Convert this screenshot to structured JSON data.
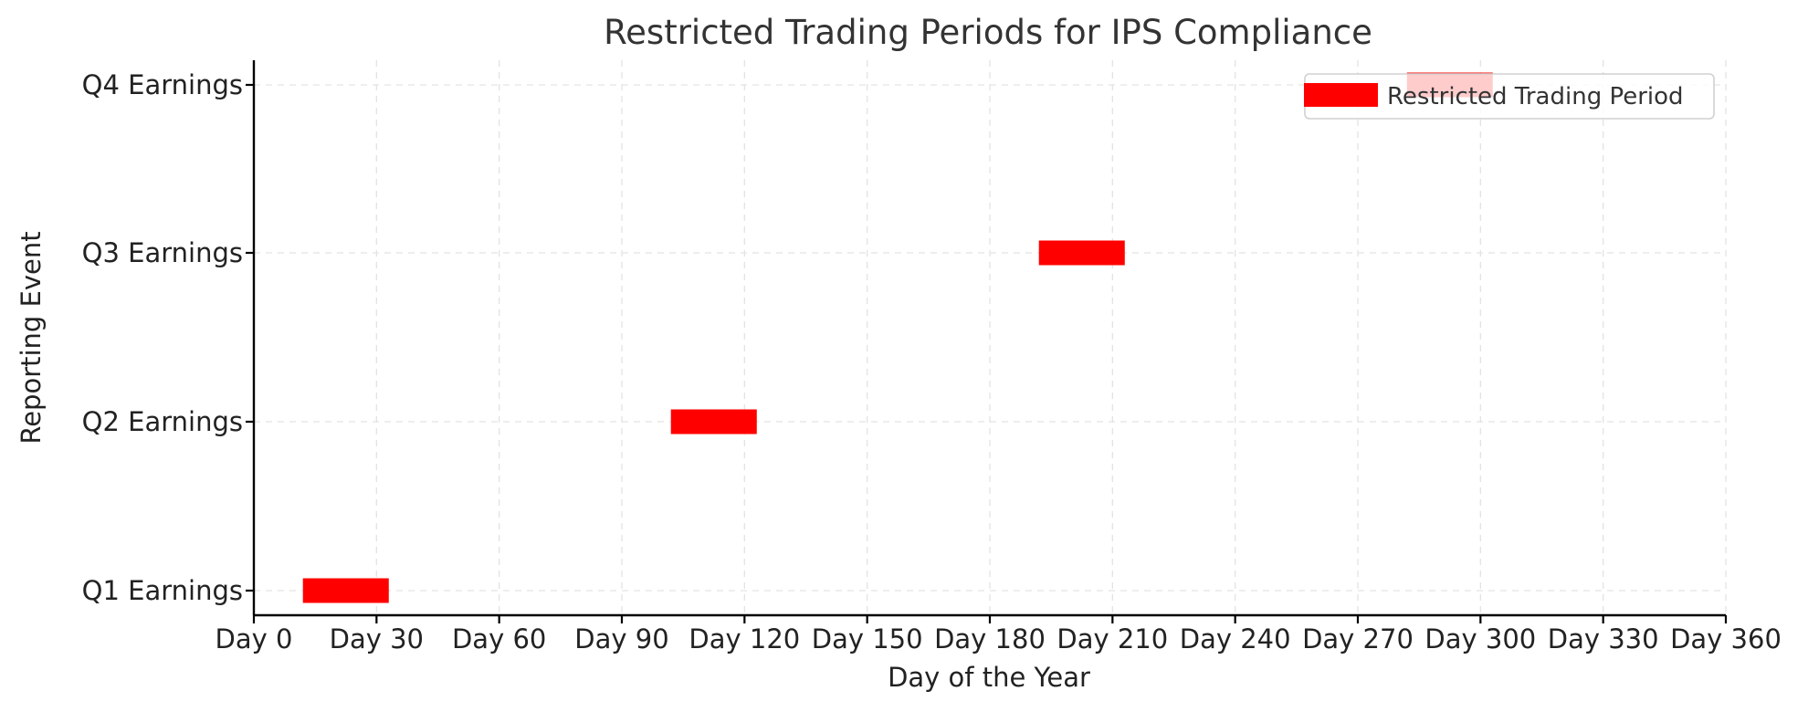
{
  "chart_data": {
    "type": "bar",
    "orientation": "horizontal",
    "title": "Restricted Trading Periods for IPS Compliance",
    "xlabel": "Day of the Year",
    "ylabel": "Reporting Event",
    "xlim": [
      0,
      360
    ],
    "x_ticks": [
      0,
      30,
      60,
      90,
      120,
      150,
      180,
      210,
      240,
      270,
      300,
      330,
      360
    ],
    "x_tick_labels": [
      "Day 0",
      "Day 30",
      "Day 60",
      "Day 90",
      "Day 120",
      "Day 150",
      "Day 180",
      "Day 210",
      "Day 240",
      "Day 270",
      "Day 300",
      "Day 330",
      "Day 360"
    ],
    "categories": [
      "Q1 Earnings",
      "Q2 Earnings",
      "Q3 Earnings",
      "Q4 Earnings"
    ],
    "series": [
      {
        "name": "Restricted Trading Period",
        "color": "#ff0000",
        "periods": [
          {
            "category": "Q1 Earnings",
            "start": 12,
            "end": 33
          },
          {
            "category": "Q2 Earnings",
            "start": 102,
            "end": 123
          },
          {
            "category": "Q3 Earnings",
            "start": 192,
            "end": 213
          },
          {
            "category": "Q4 Earnings",
            "start": 282,
            "end": 303
          }
        ]
      }
    ],
    "grid": true,
    "legend": {
      "position": "top-right",
      "label": "Restricted Trading Period"
    }
  }
}
